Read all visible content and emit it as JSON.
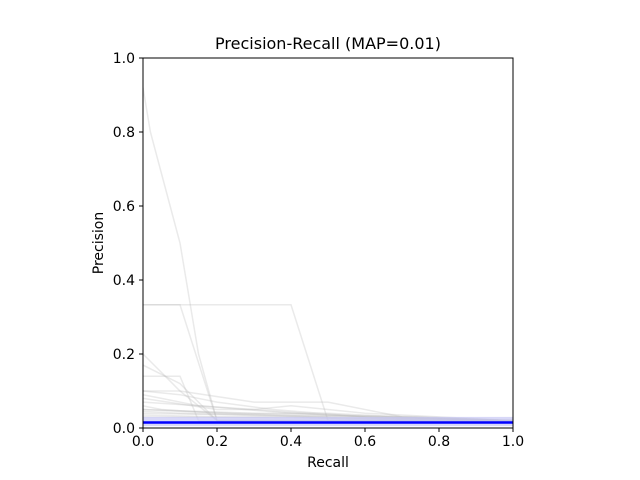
{
  "chart_data": {
    "type": "line",
    "title": "Precision-Recall (MAP=0.01)",
    "xlabel": "Recall",
    "ylabel": "Precision",
    "xlim": [
      0.0,
      1.0
    ],
    "ylim": [
      0.0,
      1.0
    ],
    "x_ticks": [
      "0.0",
      "0.2",
      "0.4",
      "0.6",
      "0.8",
      "1.0"
    ],
    "y_ticks": [
      "0.0",
      "0.2",
      "0.4",
      "0.6",
      "0.8",
      "1.0"
    ],
    "grid": false,
    "legend": "none",
    "mean_color": "#0000ff",
    "band_color": "#c8c8f5",
    "curve_color": "#b4b4b4",
    "mean_value": 0.015,
    "band": [
      0.005,
      0.03
    ],
    "series": [
      {
        "x": [
          0.0,
          0.02,
          0.1,
          0.15,
          0.2,
          1.0
        ],
        "y": [
          0.92,
          0.8,
          0.5,
          0.2,
          0.02,
          0.02
        ]
      },
      {
        "x": [
          0.0,
          0.1,
          0.2,
          0.4,
          0.5,
          1.0
        ],
        "y": [
          0.333,
          0.333,
          0.333,
          0.333,
          0.02,
          0.02
        ]
      },
      {
        "x": [
          0.0,
          0.1,
          0.2,
          1.0
        ],
        "y": [
          0.333,
          0.333,
          0.02,
          0.02
        ]
      },
      {
        "x": [
          0.0,
          0.1,
          0.2,
          1.0
        ],
        "y": [
          0.17,
          0.12,
          0.02,
          0.02
        ]
      },
      {
        "x": [
          0.0,
          0.1,
          0.15,
          1.0
        ],
        "y": [
          0.14,
          0.14,
          0.02,
          0.02
        ]
      },
      {
        "x": [
          0.0,
          0.1,
          0.2,
          1.0
        ],
        "y": [
          0.1,
          0.1,
          0.02,
          0.02
        ]
      },
      {
        "x": [
          0.0,
          0.1,
          0.3,
          0.5,
          0.7,
          1.0
        ],
        "y": [
          0.2,
          0.1,
          0.07,
          0.07,
          0.03,
          0.02
        ]
      },
      {
        "x": [
          0.0,
          0.2,
          0.3,
          0.4,
          0.6,
          1.0
        ],
        "y": [
          0.08,
          0.05,
          0.05,
          0.06,
          0.04,
          0.02
        ]
      },
      {
        "x": [
          0.0,
          0.3,
          0.5,
          0.7,
          1.0
        ],
        "y": [
          0.05,
          0.04,
          0.04,
          0.03,
          0.02
        ]
      },
      {
        "x": [
          0.0,
          0.15,
          0.4,
          0.6,
          1.0
        ],
        "y": [
          0.07,
          0.06,
          0.04,
          0.03,
          0.02
        ]
      },
      {
        "x": [
          0.0,
          0.05,
          0.2,
          0.5,
          1.0
        ],
        "y": [
          0.06,
          0.05,
          0.04,
          0.03,
          0.02
        ]
      },
      {
        "x": [
          0.0,
          0.1,
          0.3,
          0.6,
          0.8,
          1.0
        ],
        "y": [
          0.045,
          0.04,
          0.035,
          0.03,
          0.025,
          0.02
        ]
      },
      {
        "x": [
          0.0,
          0.25,
          0.45,
          0.65,
          1.0
        ],
        "y": [
          0.04,
          0.035,
          0.03,
          0.025,
          0.02
        ]
      },
      {
        "x": [
          0.0,
          0.05,
          0.15,
          0.3,
          0.5,
          1.0
        ],
        "y": [
          0.09,
          0.08,
          0.06,
          0.05,
          0.035,
          0.02
        ]
      },
      {
        "x": [
          0.0,
          0.1,
          0.2,
          0.35,
          0.6,
          1.0
        ],
        "y": [
          0.1,
          0.09,
          0.07,
          0.05,
          0.03,
          0.02
        ]
      },
      {
        "x": [
          0.0,
          0.2,
          0.4,
          0.55,
          1.0
        ],
        "y": [
          0.035,
          0.03,
          0.03,
          0.025,
          0.02
        ]
      },
      {
        "x": [
          0.0,
          0.1,
          0.25,
          0.5,
          0.75,
          1.0
        ],
        "y": [
          0.05,
          0.045,
          0.04,
          0.035,
          0.03,
          0.02
        ]
      },
      {
        "x": [
          0.0,
          0.3,
          0.5,
          0.7,
          0.9,
          1.0
        ],
        "y": [
          0.03,
          0.028,
          0.026,
          0.024,
          0.022,
          0.02
        ]
      }
    ]
  }
}
